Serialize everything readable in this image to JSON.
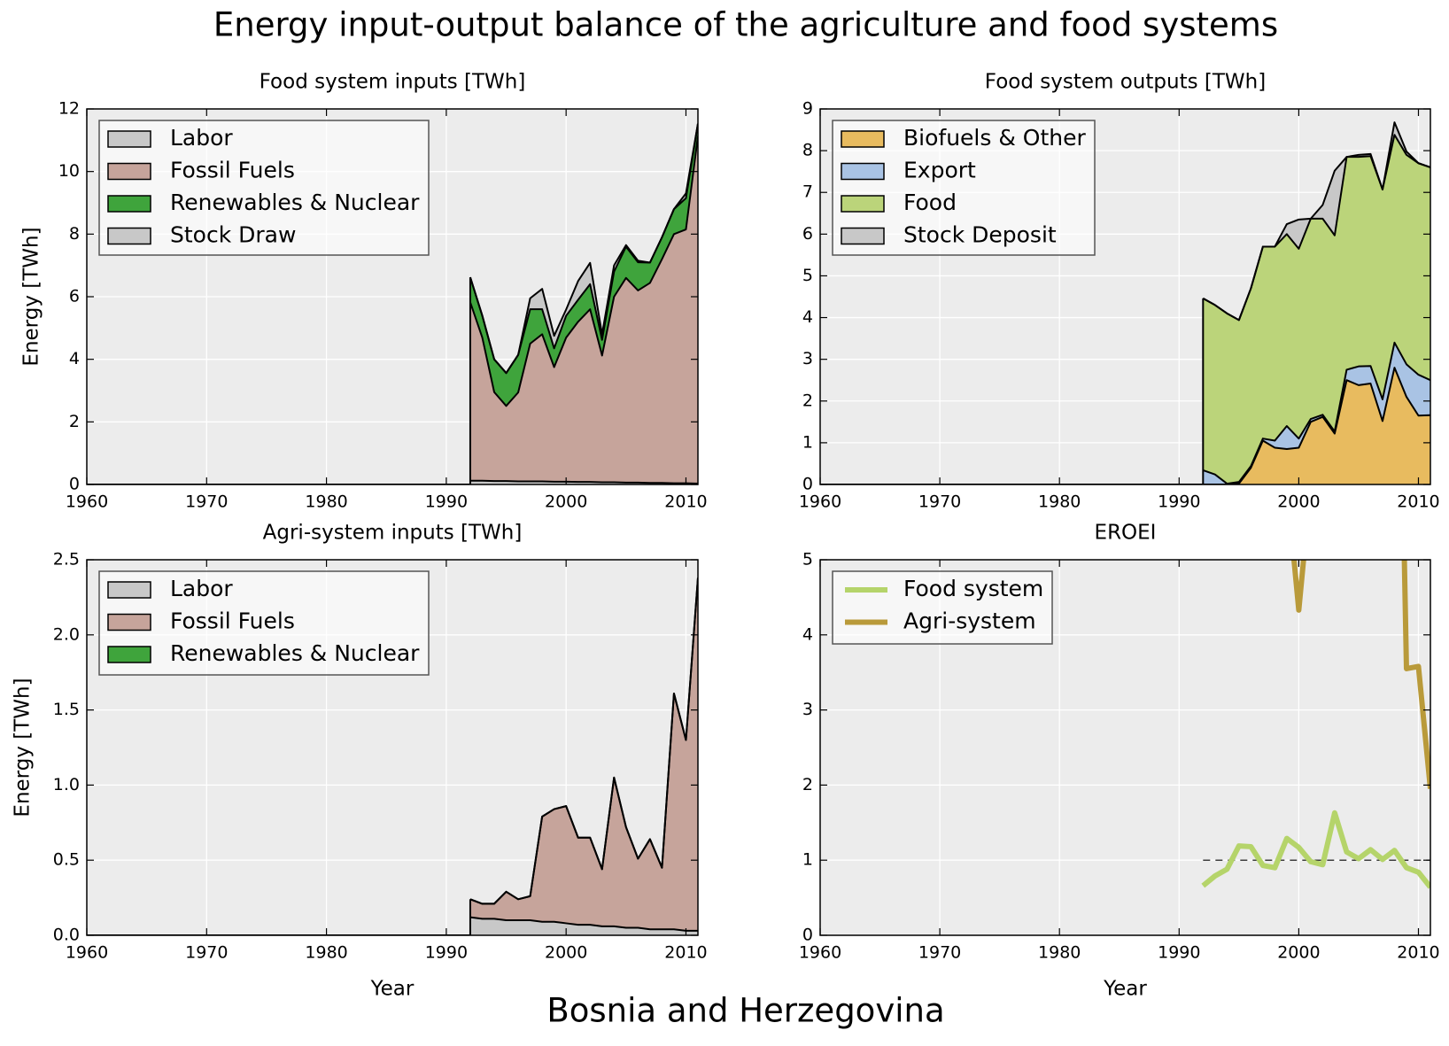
{
  "suptitle": "Energy input-output balance of the agriculture and food systems",
  "country": "Bosnia and Herzegovina",
  "colors": {
    "axes_bg": "#ececec",
    "grid": "#ffffff",
    "labor": "#c8c8c8",
    "fossil": "#c6a49b",
    "renewables": "#3fa43c",
    "stock": "#c8c8c8",
    "biofuels": "#e8bb5f",
    "export": "#a9c3e4",
    "food": "#bbd47a",
    "eroei_food": "#b5d46a",
    "eroei_agri": "#b99a3a"
  },
  "chart_data": [
    {
      "id": "food_inputs",
      "type": "area",
      "stacked": true,
      "title": "Food system inputs [TWh]",
      "xlabel": "",
      "ylabel": "Energy [TWh]",
      "xlim": [
        1960,
        2011
      ],
      "ylim": [
        0,
        12
      ],
      "xticks": [
        1960,
        1970,
        1980,
        1990,
        2000,
        2010
      ],
      "yticks": [
        0,
        2,
        4,
        6,
        8,
        10,
        12
      ],
      "ytick_labels": [
        "0",
        "2",
        "4",
        "6",
        "8",
        "10",
        "12"
      ],
      "grid": true,
      "legend_position": "upper-left",
      "x": [
        1992,
        1993,
        1994,
        1995,
        1996,
        1997,
        1998,
        1999,
        2000,
        2001,
        2002,
        2003,
        2004,
        2005,
        2006,
        2007,
        2008,
        2009,
        2010,
        2011
      ],
      "series": [
        {
          "name": "Labor",
          "color": "#c8c8c8",
          "values": [
            0.12,
            0.12,
            0.11,
            0.11,
            0.1,
            0.1,
            0.1,
            0.09,
            0.09,
            0.08,
            0.08,
            0.07,
            0.07,
            0.06,
            0.06,
            0.05,
            0.05,
            0.04,
            0.04,
            0.03
          ]
        },
        {
          "name": "Fossil Fuels",
          "color": "#c6a49b",
          "values": [
            5.7,
            4.58,
            2.84,
            2.4,
            2.84,
            4.4,
            4.7,
            3.66,
            4.6,
            5.12,
            5.52,
            4.05,
            5.93,
            6.54,
            6.14,
            6.39,
            7.15,
            7.96,
            8.11,
            11.1
          ]
        },
        {
          "name": "Renewables & Nuclear",
          "color": "#3fa43c",
          "values": [
            0.8,
            0.7,
            1.05,
            1.05,
            1.2,
            1.1,
            0.8,
            0.6,
            0.7,
            0.7,
            0.8,
            0.5,
            0.8,
            1.0,
            0.9,
            0.65,
            0.7,
            0.8,
            1.0,
            0.4
          ]
        },
        {
          "name": "Stock Draw",
          "color": "#c8c8c8",
          "values": [
            0,
            0,
            0,
            0,
            0,
            0.35,
            0.65,
            0.4,
            0.2,
            0.6,
            0.68,
            0.18,
            0.2,
            0.05,
            0.05,
            0,
            0,
            0,
            0.15,
            0
          ]
        }
      ]
    },
    {
      "id": "food_outputs",
      "type": "area",
      "stacked": true,
      "title": "Food system outputs [TWh]",
      "xlabel": "",
      "ylabel": "",
      "xlim": [
        1960,
        2011
      ],
      "ylim": [
        0,
        9
      ],
      "xticks": [
        1960,
        1970,
        1980,
        1990,
        2000,
        2010
      ],
      "yticks": [
        0,
        1,
        2,
        3,
        4,
        5,
        6,
        7,
        8,
        9
      ],
      "ytick_labels": [
        "0",
        "1",
        "2",
        "3",
        "4",
        "5",
        "6",
        "7",
        "8",
        "9"
      ],
      "grid": true,
      "legend_position": "upper-left",
      "x": [
        1992,
        1993,
        1994,
        1995,
        1996,
        1997,
        1998,
        1999,
        2000,
        2001,
        2002,
        2003,
        2004,
        2005,
        2006,
        2007,
        2008,
        2009,
        2010,
        2011
      ],
      "series": [
        {
          "name": "Biofuels & Other",
          "color": "#e8bb5f",
          "values": [
            0,
            0,
            0,
            0.02,
            0.4,
            1.05,
            0.88,
            0.85,
            0.88,
            1.5,
            1.62,
            1.22,
            2.5,
            2.38,
            2.42,
            1.52,
            2.8,
            2.1,
            1.65,
            1.66
          ]
        },
        {
          "name": "Export",
          "color": "#a9c3e4",
          "values": [
            0.34,
            0.24,
            0.02,
            0.04,
            0.04,
            0.05,
            0.17,
            0.55,
            0.22,
            0.07,
            0.05,
            0.05,
            0.25,
            0.45,
            0.42,
            0.52,
            0.6,
            0.78,
            0.98,
            0.84
          ]
        },
        {
          "name": "Food",
          "color": "#bbd47a",
          "values": [
            4.12,
            4.06,
            4.08,
            3.88,
            4.26,
            4.6,
            4.65,
            4.6,
            4.55,
            4.8,
            4.7,
            4.7,
            5.1,
            5.02,
            5.03,
            5.03,
            4.98,
            5.02,
            5.07,
            5.1
          ]
        },
        {
          "name": "Stock Deposit",
          "color": "#c8c8c8",
          "values": [
            0,
            0,
            0,
            0,
            0,
            0,
            0,
            0.24,
            0.7,
            0,
            0.33,
            1.55,
            0,
            0.05,
            0.05,
            0,
            0.3,
            0.08,
            0,
            0
          ]
        }
      ]
    },
    {
      "id": "agri_inputs",
      "type": "area",
      "stacked": true,
      "title": "Agri-system inputs [TWh]",
      "xlabel": "Year",
      "ylabel": "Energy [TWh]",
      "xlim": [
        1960,
        2011
      ],
      "ylim": [
        0,
        2.5
      ],
      "xticks": [
        1960,
        1970,
        1980,
        1990,
        2000,
        2010
      ],
      "yticks": [
        0,
        0.5,
        1.0,
        1.5,
        2.0,
        2.5
      ],
      "ytick_labels": [
        "0.0",
        "0.5",
        "1.0",
        "1.5",
        "2.0",
        "2.5"
      ],
      "grid": true,
      "legend_position": "upper-left",
      "x": [
        1992,
        1993,
        1994,
        1995,
        1996,
        1997,
        1998,
        1999,
        2000,
        2001,
        2002,
        2003,
        2004,
        2005,
        2006,
        2007,
        2008,
        2009,
        2010,
        2011
      ],
      "series": [
        {
          "name": "Labor",
          "color": "#c8c8c8",
          "values": [
            0.12,
            0.11,
            0.11,
            0.1,
            0.1,
            0.1,
            0.09,
            0.09,
            0.08,
            0.07,
            0.07,
            0.06,
            0.06,
            0.05,
            0.05,
            0.04,
            0.04,
            0.04,
            0.03,
            0.03
          ]
        },
        {
          "name": "Fossil Fuels",
          "color": "#c6a49b",
          "values": [
            0.12,
            0.1,
            0.1,
            0.19,
            0.14,
            0.16,
            0.7,
            0.75,
            0.78,
            0.58,
            0.58,
            0.38,
            0.99,
            0.67,
            0.46,
            0.6,
            0.41,
            1.57,
            1.27,
            2.35
          ]
        },
        {
          "name": "Renewables & Nuclear",
          "color": "#3fa43c",
          "values": [
            0,
            0,
            0,
            0,
            0,
            0,
            0,
            0,
            0,
            0,
            0,
            0,
            0,
            0,
            0,
            0,
            0,
            0,
            0,
            0
          ]
        }
      ]
    },
    {
      "id": "eroei",
      "type": "line",
      "title": "EROEI",
      "xlabel": "Year",
      "ylabel": "",
      "xlim": [
        1960,
        2011
      ],
      "ylim": [
        0,
        5
      ],
      "xticks": [
        1960,
        1970,
        1980,
        1990,
        2000,
        2010
      ],
      "yticks": [
        0,
        1,
        2,
        3,
        4,
        5
      ],
      "ytick_labels": [
        "0",
        "1",
        "2",
        "3",
        "4",
        "5"
      ],
      "grid": true,
      "legend_position": "upper-left",
      "reference_line": {
        "y": 1,
        "x": [
          1992,
          2011
        ],
        "style": "dashed"
      },
      "series": [
        {
          "name": "Food system",
          "color": "#b5d46a",
          "width": 6,
          "x": [
            1992,
            1993,
            1994,
            1995,
            1996,
            1997,
            1998,
            1999,
            2000,
            2001,
            2002,
            2003,
            2004,
            2005,
            2006,
            2007,
            2008,
            2009,
            2010,
            2011
          ],
          "values": [
            0.66,
            0.79,
            0.88,
            1.19,
            1.18,
            0.93,
            0.9,
            1.29,
            1.17,
            0.98,
            0.94,
            1.63,
            1.11,
            1.02,
            1.14,
            1.01,
            1.13,
            0.9,
            0.84,
            0.64
          ]
        },
        {
          "name": "Agri-system",
          "color": "#b99a3a",
          "width": 6,
          "x": [
            1999.3,
            1999.6,
            2000,
            2000.4,
            2000.7,
            2008.7,
            2009,
            2010,
            2011
          ],
          "values": [
            6.5,
            5.0,
            4.33,
            5.0,
            6.5,
            6.0,
            3.55,
            3.58,
            1.95
          ]
        }
      ]
    }
  ]
}
